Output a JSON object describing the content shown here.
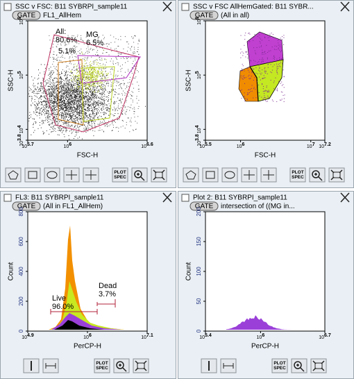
{
  "panels": [
    {
      "title": "SSC v FSC: B11 SYBRPI_sample11",
      "gate_button": "GATE",
      "gate_name": "FL1_AllHem",
      "x_label": "FSC-H",
      "y_label": "SSC-H",
      "x_ticks": [
        {
          "base": "10",
          "exp": "5.7"
        },
        {
          "base": "10",
          "exp": "6"
        },
        {
          "base": "10",
          "exp": "6.6"
        }
      ],
      "y_ticks": [
        {
          "base": "10",
          "exp": "3.8"
        },
        {
          "base": "10",
          "exp": "4"
        },
        {
          "base": "10",
          "exp": "5"
        },
        {
          "base": "10",
          "exp": "6"
        }
      ],
      "annotations": [
        "All:",
        "80.6%",
        "MG",
        "6.5%",
        "5.1%"
      ],
      "plot_spec": [
        "PLOT",
        "SPEC"
      ]
    },
    {
      "title": "SSC v FSC AllHemGated: B11 SYBR...",
      "gate_button": "GATE",
      "gate_name": "(All in all)",
      "x_label": "FSC-H",
      "y_label": "SSC-H",
      "x_ticks": [
        {
          "base": "10",
          "exp": "5.5"
        },
        {
          "base": "10",
          "exp": "6"
        },
        {
          "base": "10",
          "exp": "7"
        },
        {
          "base": "10",
          "exp": "7.2"
        }
      ],
      "y_ticks": [
        {
          "base": "10",
          "exp": "3.8"
        },
        {
          "base": "10",
          "exp": "4"
        },
        {
          "base": "10",
          "exp": "5"
        },
        {
          "base": "10",
          "exp": "6"
        }
      ],
      "annotations": [],
      "plot_spec": [
        "PLOT",
        "SPEC"
      ]
    },
    {
      "title": "FL3: B11 SYBRPI_sample11",
      "gate_button": "GATE",
      "gate_name": "(All in FL1_AllHem)",
      "x_label": "PerCP-H",
      "y_label": "Count",
      "x_ticks": [
        {
          "base": "10",
          "exp": "4.9"
        },
        {
          "base": "10",
          "exp": "6"
        },
        {
          "base": "10",
          "exp": "7.1"
        }
      ],
      "y_ticks": [
        0,
        200,
        400,
        600,
        800
      ],
      "annotations": [
        "Live",
        "96.0%",
        "Dead",
        "3.7%"
      ],
      "plot_spec": [
        "PLOT",
        "SPEC"
      ]
    },
    {
      "title": "Plot 2: B11 SYBRPI_sample11",
      "gate_button": "GATE",
      "gate_name": "intersection of ((MG in...",
      "x_label": "PerCP-H",
      "y_label": "Count",
      "x_ticks": [
        {
          "base": "10",
          "exp": "5.4"
        },
        {
          "base": "10",
          "exp": "6"
        },
        {
          "base": "10",
          "exp": "6.7"
        }
      ],
      "y_ticks": [
        0,
        50,
        100,
        150,
        200
      ],
      "annotations": [],
      "plot_spec": [
        "PLOT",
        "SPEC"
      ]
    }
  ]
}
